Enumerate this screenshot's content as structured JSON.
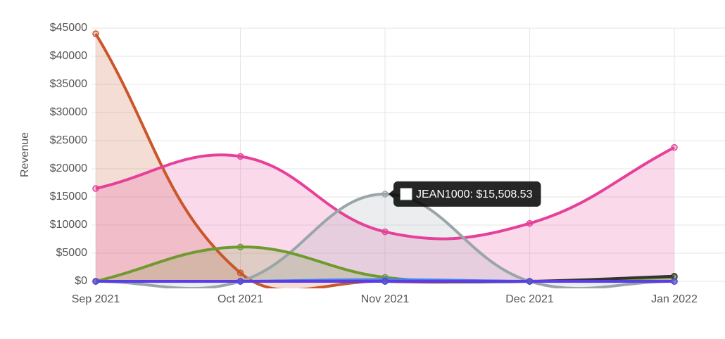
{
  "chart_data": {
    "type": "line",
    "y_label": "Revenue",
    "categories": [
      "Sep 2021",
      "Oct 2021",
      "Nov 2021",
      "Dec 2021",
      "Jan 2022"
    ],
    "series": [
      {
        "color": "#c9572a",
        "values": [
          44000,
          1500,
          0,
          0,
          0
        ]
      },
      {
        "color": "#e6409a",
        "values": [
          16500,
          22200,
          8800,
          10300,
          23800
        ]
      },
      {
        "name": "JEAN1000",
        "color": "#9aa5a8",
        "values": [
          0,
          0,
          15508.53,
          0,
          0
        ],
        "value_labels": [
          null,
          null,
          "$15,508.53",
          null,
          null
        ]
      },
      {
        "color": "#6f9a2e",
        "values": [
          0,
          6100,
          700,
          0,
          700
        ]
      },
      {
        "color": "#333333",
        "values": [
          0,
          0,
          0,
          0,
          900
        ]
      },
      {
        "color": "#4a7ff0",
        "values": [
          0,
          0,
          300,
          0,
          0
        ]
      },
      {
        "color": "#5a3de6",
        "values": [
          0,
          0,
          0,
          0,
          0
        ]
      }
    ],
    "tooltip": {
      "series": 2,
      "index": 2
    },
    "ylim": [
      0,
      45000
    ],
    "yticks": [
      {
        "value": 0,
        "label": "$0"
      },
      {
        "value": 5000,
        "label": "$5000"
      },
      {
        "value": 10000,
        "label": "$10000"
      },
      {
        "value": 15000,
        "label": "$15000"
      },
      {
        "value": 20000,
        "label": "$20000"
      },
      {
        "value": 25000,
        "label": "$25000"
      },
      {
        "value": 30000,
        "label": "$30000"
      },
      {
        "value": 35000,
        "label": "$35000"
      },
      {
        "value": 40000,
        "label": "$40000"
      },
      {
        "value": 45000,
        "label": "$45000"
      }
    ],
    "grid": true
  }
}
